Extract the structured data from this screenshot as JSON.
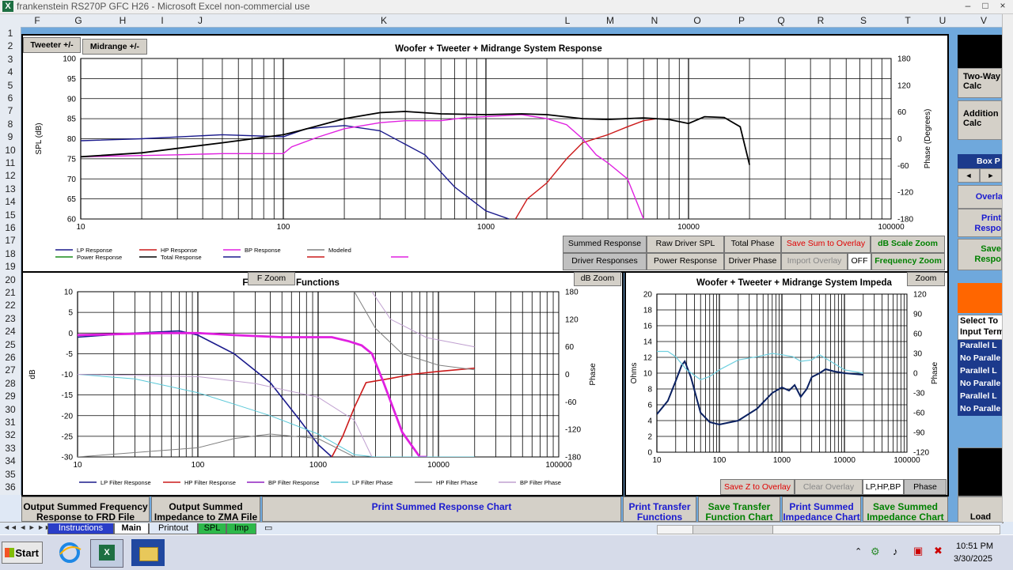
{
  "window": {
    "title": "frankenstein RS270P GFC H26 - Microsoft Excel non-commercial use",
    "btn_min": "–",
    "btn_max": "□",
    "btn_close": "×"
  },
  "columns": [
    "F",
    "G",
    "H",
    "I",
    "J",
    "K",
    "L",
    "M",
    "N",
    "O",
    "P",
    "Q",
    "R",
    "S",
    "T",
    "U",
    "V"
  ],
  "rows": [
    "1",
    "2",
    "3",
    "4",
    "5",
    "6",
    "7",
    "8",
    "9",
    "10",
    "11",
    "12",
    "13",
    "14",
    "15",
    "16",
    "17",
    "18",
    "19",
    "20",
    "21",
    "22",
    "23",
    "24",
    "25",
    "26",
    "27",
    "28",
    "29",
    "30",
    "31",
    "32",
    "33",
    "34",
    "35",
    "36"
  ],
  "top_chart": {
    "title": "Woofer + Tweeter + Midrange  System Response",
    "ylabel": "SPL (dB)",
    "y2label": "Phase (Degrees)",
    "btn_tweeter": "Tweeter +/-",
    "btn_midrange": "Midrange  +/-",
    "legend": [
      "LP Response",
      "HP Response",
      "BP Response",
      "Modeled",
      "Power Response",
      "Total Response"
    ],
    "buttons": {
      "summed": "Summed Response",
      "raw": "Raw Driver SPL",
      "total_phase": "Total Phase",
      "save_sum": "Save Sum to Overlay",
      "db_zoom": "dB Scale Zoom",
      "driver": "Driver Responses",
      "power": "Power Response",
      "driver_phase": "Driver Phase",
      "import": "Import Overlay",
      "off": "OFF",
      "freq_zoom": "Frequency Zoom"
    },
    "colors": {
      "lp": "#1a1a8c",
      "hp": "#cc1a1a",
      "bp": "#e020e0",
      "total": "#000000"
    }
  },
  "filter_chart": {
    "title_left": "Filte",
    "title_right": "Functions",
    "btn_fzoom": "F Zoom",
    "btn_dbzoom": "dB Zoom",
    "ylabel": "dB",
    "y2label": "Phase",
    "legend": [
      "LP Filter Response",
      "HP Filter Response",
      "BP Filter Response",
      "LP Filter Phase",
      "HP Filter Phase",
      "BP Filter Phase"
    ]
  },
  "imp_chart": {
    "title": "Woofer + Tweeter + Midrange  System Impeda",
    "btn_zoom": "Zoom",
    "ylabel": "Ohms",
    "y2label": "Phase",
    "btn_save_z": "Save Z to Overlay",
    "btn_clear": "Clear Overlay",
    "btn_lphp": "LP,HP,BP",
    "btn_phase": "Phase"
  },
  "chart_data": [
    {
      "type": "line",
      "title": "Woofer + Tweeter + Midrange  System Response",
      "xlabel": "",
      "ylabel": "SPL (dB)",
      "xscale": "log",
      "xlim": [
        10,
        100000
      ],
      "ylim": [
        60,
        100
      ],
      "y2lim": [
        -180,
        180
      ],
      "x_ticks": [
        "10",
        "100",
        "1000",
        "10000",
        "100000"
      ],
      "y_ticks": [
        "100",
        "95",
        "90",
        "85",
        "80",
        "75",
        "70",
        "65",
        "60"
      ],
      "y2_ticks": [
        "180",
        "120",
        "60",
        "0",
        "-60",
        "-120",
        "-180"
      ],
      "series": [
        {
          "name": "LP Response",
          "color": "#1a1a8c",
          "x": [
            10,
            20,
            50,
            100,
            130,
            200,
            300,
            500,
            700,
            1000,
            1300
          ],
          "y": [
            79.5,
            80,
            81,
            80.5,
            82.5,
            83.3,
            82,
            76,
            68,
            62,
            60
          ]
        },
        {
          "name": "HP Response",
          "color": "#cc1a1a",
          "x": [
            1400,
            1600,
            2000,
            2500,
            3000,
            4000,
            5000,
            6000,
            7000
          ],
          "y": [
            60,
            65,
            69,
            75,
            79,
            81,
            83,
            84.5,
            85
          ]
        },
        {
          "name": "BP Response",
          "color": "#e020e0",
          "x": [
            10,
            30,
            50,
            100,
            110,
            150,
            200,
            300,
            400,
            600,
            800,
            1000,
            1500,
            2000,
            2500,
            3000,
            3500,
            4000,
            5000,
            6000
          ],
          "y": [
            75.5,
            76,
            76.3,
            76.3,
            78,
            80.5,
            82.5,
            84,
            84.5,
            84.5,
            85.3,
            85.5,
            86,
            85,
            83.5,
            80,
            76,
            74,
            70,
            60
          ]
        },
        {
          "name": "Total Response",
          "color": "#000000",
          "x": [
            10,
            20,
            50,
            100,
            120,
            200,
            300,
            400,
            600,
            1000,
            1500,
            2000,
            3000,
            4000,
            6000,
            8000,
            10000,
            12000,
            15000,
            18000,
            20000
          ],
          "y": [
            75.5,
            76.5,
            79,
            81,
            82,
            85,
            86.5,
            86.8,
            86.2,
            86,
            86.2,
            86,
            85,
            84.8,
            85.2,
            84.8,
            83.8,
            85.5,
            85.3,
            83,
            73.5
          ]
        }
      ]
    },
    {
      "type": "line",
      "title": "Filter Transfer Functions",
      "xlabel": "",
      "ylabel": "dB",
      "xscale": "log",
      "xlim": [
        10,
        100000
      ],
      "ylim": [
        -30,
        10
      ],
      "y2lim": [
        -180,
        180
      ],
      "x_ticks": [
        "10",
        "100",
        "1000",
        "10000",
        "100000"
      ],
      "y_ticks": [
        "10",
        "5",
        "0",
        "-5",
        "-10",
        "-15",
        "-20",
        "-25",
        "-30"
      ],
      "y2_ticks": [
        "180",
        "120",
        "60",
        "0",
        "-60",
        "-120",
        "-180"
      ],
      "series": [
        {
          "name": "LP Filter Response",
          "color": "#1a1a8c",
          "x": [
            10,
            30,
            70,
            100,
            200,
            400,
            700,
            1000,
            1300
          ],
          "y": [
            -1,
            0,
            0.5,
            -0.5,
            -5,
            -12,
            -21,
            -27,
            -30
          ]
        },
        {
          "name": "HP Filter Response",
          "color": "#cc1a1a",
          "x": [
            1300,
            1600,
            2000,
            2500,
            4000,
            6000,
            10000,
            20000
          ],
          "y": [
            -30,
            -25,
            -18,
            -12,
            -11,
            -10,
            -9.3,
            -8.5
          ]
        },
        {
          "name": "BP Filter Response",
          "color": "#e020e0",
          "x": [
            10,
            50,
            100,
            200,
            500,
            1000,
            1300,
            1800,
            2300,
            2800,
            3500,
            5000,
            7000,
            8000
          ],
          "y": [
            -0.5,
            0,
            0,
            -0.5,
            -1,
            -1,
            -1,
            -2,
            -3,
            -5,
            -12,
            -24,
            -30,
            -30
          ]
        },
        {
          "name": "LP Filter Phase",
          "color": "#5ac8d8",
          "x": [
            10,
            30,
            100,
            200,
            400,
            1000,
            2000,
            3000,
            10000,
            20000
          ],
          "y": [
            0,
            -10,
            -40,
            -65,
            -90,
            -130,
            -175,
            -180,
            -180,
            -180
          ]
        },
        {
          "name": "HP Filter Phase",
          "color": "#808080",
          "x": [
            10,
            100,
            200,
            400,
            1000,
            2000,
            2001,
            3000,
            5000,
            10000,
            20000
          ],
          "y": [
            -180,
            -160,
            -140,
            -130,
            -140,
            -180,
            180,
            100,
            45,
            20,
            10
          ]
        },
        {
          "name": "BP Filter Phase",
          "color": "#c0a0d0",
          "x": [
            10,
            100,
            300,
            1000,
            2000,
            2800,
            2801,
            4000,
            8000,
            20000
          ],
          "y": [
            0,
            -5,
            -20,
            -50,
            -100,
            -180,
            180,
            120,
            80,
            60
          ]
        }
      ]
    },
    {
      "type": "line",
      "title": "Woofer + Tweeter + Midrange  System Impedance",
      "xlabel": "",
      "ylabel": "Ohms",
      "xscale": "log",
      "xlim": [
        10,
        100000
      ],
      "ylim": [
        0,
        20
      ],
      "y2lim": [
        -120,
        120
      ],
      "x_ticks": [
        "10",
        "100",
        "1000",
        "10000",
        "100000"
      ],
      "y_ticks": [
        "20",
        "18",
        "16",
        "14",
        "12",
        "10",
        "8",
        "6",
        "4",
        "2",
        "0"
      ],
      "y2_ticks": [
        "120",
        "90",
        "60",
        "30",
        "0",
        "-30",
        "-60",
        "-90",
        "-120"
      ],
      "series": [
        {
          "name": "Impedance",
          "color": "#0a2060",
          "x": [
            10,
            15,
            20,
            25,
            28,
            35,
            50,
            70,
            100,
            200,
            400,
            700,
            1000,
            1300,
            1600,
            2000,
            2500,
            3000,
            4000,
            5000,
            7000,
            10000,
            20000
          ],
          "y": [
            4.8,
            6.5,
            9,
            11,
            11.5,
            9.5,
            5,
            3.8,
            3.5,
            4,
            5.5,
            7.5,
            8.2,
            7.8,
            8.5,
            7,
            8,
            9.5,
            10,
            10.5,
            10.2,
            10,
            9.8
          ]
        },
        {
          "name": "Phase",
          "color": "#70d0e0",
          "x": [
            10,
            15,
            20,
            30,
            50,
            70,
            100,
            200,
            400,
            700,
            1000,
            1500,
            2000,
            3000,
            4000,
            6000,
            10000,
            20000
          ],
          "y": [
            33,
            33,
            25,
            5,
            -10,
            -5,
            5,
            20,
            25,
            30,
            28,
            25,
            18,
            20,
            28,
            18,
            5,
            0
          ]
        }
      ]
    }
  ],
  "sidebar": {
    "two_way": "Two-Way Calc",
    "addition": "Addition Calc",
    "box": "Box P",
    "arrow_left": "◄",
    "arrow_right": "►",
    "overlay": "Overla",
    "print_resp": "Print Respo",
    "save_resp": "Save Respo",
    "select": "Select To Input Term",
    "parallel": [
      "Parallel L",
      "No Paralle",
      "Parallel L",
      "No Paralle",
      "Parallel L",
      "No Paralle"
    ],
    "load": "Load"
  },
  "bottom_buttons": [
    "Output Summed Frequency Response to FRD File",
    "Output Summed Impedance to ZMA File",
    "Print Summed Response Chart",
    "Print Transfer Functions",
    "Save Transfer Function Chart",
    "Print Summed Impedance Chart",
    "Save Summed Impedance Chart"
  ],
  "tabs": [
    "Instructions",
    "Main",
    "Printout",
    "SPL",
    "Imp"
  ],
  "taskbar": {
    "start": "Start",
    "time": "10:51 PM",
    "date": "3/30/2025",
    "tray_arrow": "⌃"
  }
}
